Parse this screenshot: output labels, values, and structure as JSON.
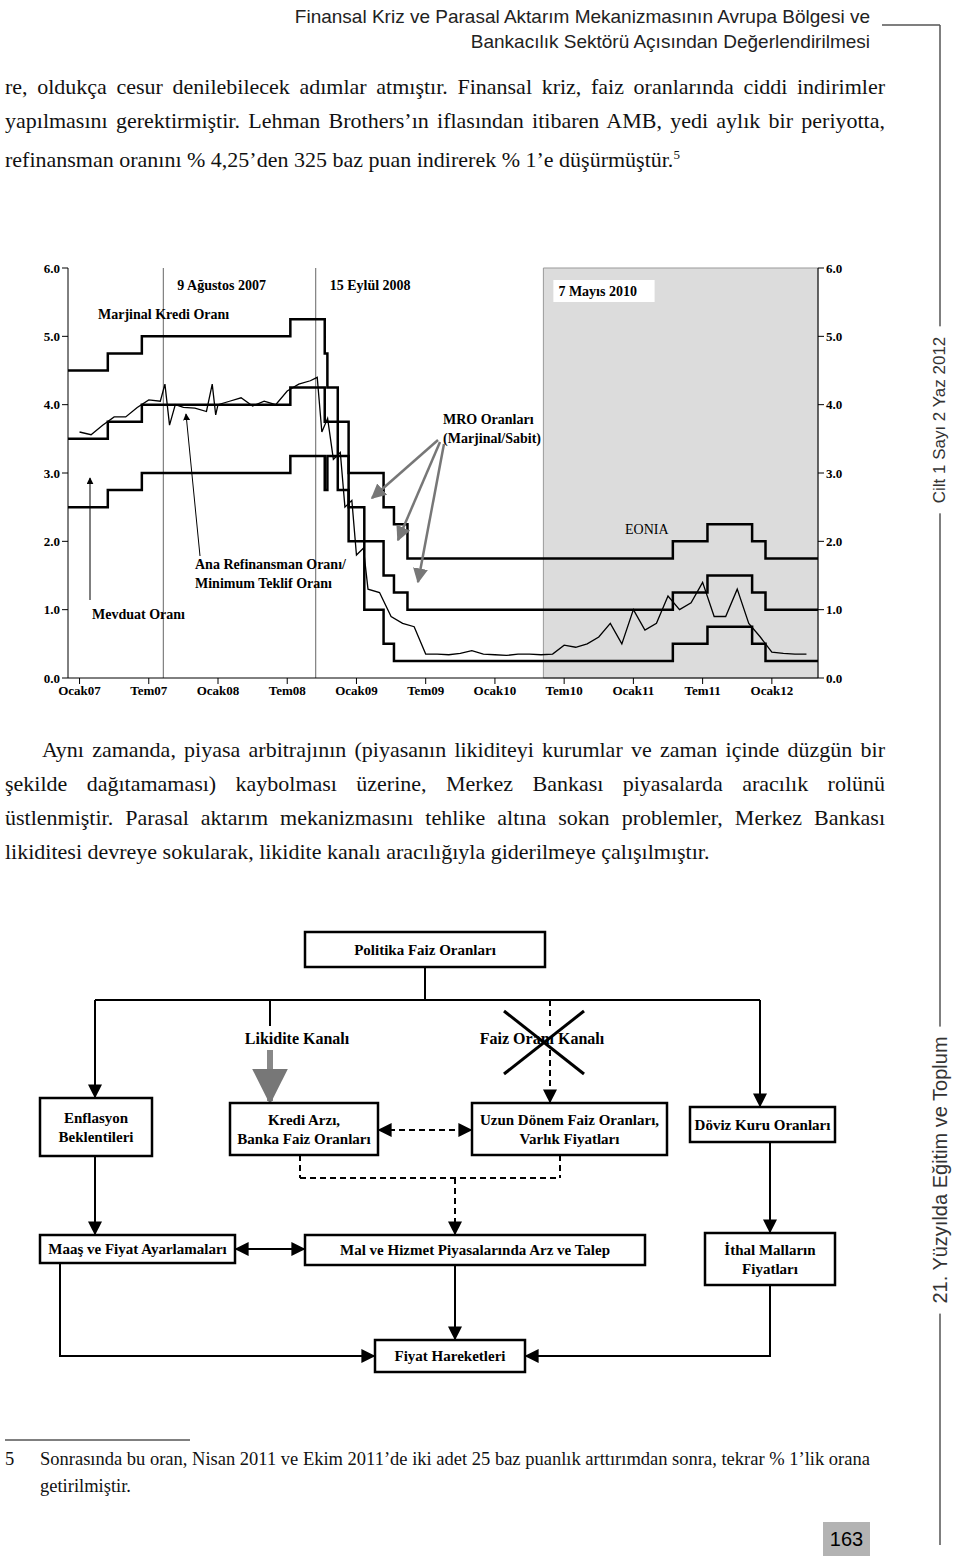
{
  "header": {
    "lines": [
      "Finansal Kriz ve Parasal Aktarım Mekanizmasının Avrupa Bölgesi ve",
      "Bankacılık Sektörü Açısından Değerlendirilmesi"
    ]
  },
  "paragraphs": [
    {
      "text": "re, oldukça cesur denilebilecek adımlar atmıştır. Finansal kriz, faiz oranlarında ciddi indirimler yapılmasını gerektirmiştir. Lehman Brothers’ın iflasından itibaren AMB, yedi aylık bir periyotta, refinansman oranını % 4,25’den 325 baz puan indirerek % 1’e düşürmüştür.",
      "footnote_ref": "5"
    },
    {
      "text": "Aynı zamanda, piyasa arbitrajının (piyasanın likiditeyi kurumlar ve zaman içinde düzgün bir şekilde dağıtamaması) kaybolması üzerine, Merkez Bankası piyasalarda aracılık rolünü üstlenmiştir. Parasal aktarım mekanizmasını tehlike altına sokan problemler, Merkez Bankası likiditesi devreye sokularak, likidite kanalı aracılığıyla giderilmeye çalışılmıştır."
    }
  ],
  "chart_data": {
    "type": "line",
    "xlim": [
      -1,
      64
    ],
    "xticks": [
      {
        "value": 0,
        "label": "Ocak07"
      },
      {
        "value": 6,
        "label": "Tem07"
      },
      {
        "value": 12,
        "label": "Ocak08"
      },
      {
        "value": 18,
        "label": "Tem08"
      },
      {
        "value": 24,
        "label": "Ocak09"
      },
      {
        "value": 30,
        "label": "Tem09"
      },
      {
        "value": 36,
        "label": "Ocak10"
      },
      {
        "value": 42,
        "label": "Tem10"
      },
      {
        "value": 48,
        "label": "Ocak11"
      },
      {
        "value": 54,
        "label": "Tem11"
      },
      {
        "value": 60,
        "label": "Ocak12"
      }
    ],
    "ylim": [
      0,
      6
    ],
    "yticks": [
      {
        "value": 0,
        "label": "0.0"
      },
      {
        "value": 1,
        "label": "1.0"
      },
      {
        "value": 2,
        "label": "2.0"
      },
      {
        "value": 3,
        "label": "3.0"
      },
      {
        "value": 4,
        "label": "4.0"
      },
      {
        "value": 5,
        "label": "5.0"
      },
      {
        "value": 6,
        "label": "6.0"
      }
    ],
    "series": [
      {
        "name": "Marjinal Kredi Oranı",
        "color": "#000000",
        "line_style": "step",
        "x": [
          -1,
          2.45,
          5.4,
          18.27,
          21.25,
          21.48,
          22.38,
          23.32,
          24.68,
          26.35,
          27.25,
          28.42,
          51.42,
          54.42,
          58.29,
          59.45,
          64
        ],
        "values": [
          4.5,
          4.75,
          5.0,
          5.25,
          4.75,
          4.25,
          3.75,
          3.0,
          3.0,
          2.5,
          2.25,
          1.75,
          2.0,
          2.25,
          2.0,
          1.75,
          1.75
        ]
      },
      {
        "name": "Ana Refinansman Oranı/\nMinimum Teklif Oranı",
        "color": "#000000",
        "line_style": "step",
        "x": [
          -1,
          2.45,
          5.4,
          18.27,
          21.25,
          21.48,
          22.38,
          23.32,
          24.68,
          26.35,
          27.25,
          28.42,
          51.42,
          54.42,
          58.29,
          59.45,
          64
        ],
        "values": [
          3.5,
          3.75,
          4.0,
          4.25,
          3.75,
          3.75,
          3.25,
          2.5,
          2.0,
          1.5,
          1.25,
          1.0,
          1.25,
          1.5,
          1.25,
          1.0,
          1.0
        ]
      },
      {
        "name": "Mevduat Oranı",
        "color": "#000000",
        "line_style": "step",
        "x": [
          -1,
          2.45,
          5.4,
          18.27,
          21.25,
          21.48,
          22.38,
          23.32,
          24.68,
          26.35,
          27.25,
          28.42,
          51.42,
          54.42,
          58.29,
          59.45,
          64
        ],
        "values": [
          2.5,
          2.75,
          3.0,
          3.25,
          2.75,
          3.25,
          2.75,
          2.0,
          1.0,
          0.5,
          0.25,
          0.25,
          0.5,
          0.75,
          0.5,
          0.25,
          0.25
        ]
      },
      {
        "name": "EONIA",
        "color": "#000000",
        "line_style": "solid",
        "x": [
          0,
          1,
          2,
          3,
          4,
          5,
          6,
          7,
          7.4,
          7.8,
          8.3,
          9,
          10,
          11,
          11.5,
          11.8,
          12,
          13,
          14,
          15,
          16,
          17,
          18,
          19,
          20,
          20.6,
          21,
          21.5,
          22,
          22.6,
          23,
          23.6,
          24,
          24.6,
          25,
          26,
          27,
          28,
          29,
          30,
          31,
          32,
          33,
          34,
          35,
          36,
          37,
          38,
          39,
          40,
          41,
          42,
          43,
          44,
          45,
          46,
          47,
          48,
          49,
          50,
          51,
          52,
          53,
          54,
          55,
          56,
          57,
          58,
          59,
          60,
          61,
          62,
          63
        ],
        "values": [
          3.6,
          3.56,
          3.7,
          3.82,
          3.82,
          3.96,
          4.07,
          4.05,
          4.3,
          3.7,
          4.0,
          3.96,
          3.95,
          3.9,
          4.3,
          3.85,
          4.0,
          4.05,
          4.1,
          3.98,
          4.05,
          4.0,
          4.2,
          4.3,
          4.35,
          4.4,
          3.6,
          3.8,
          3.2,
          3.3,
          2.5,
          2.6,
          1.8,
          1.9,
          1.3,
          1.25,
          0.9,
          0.8,
          0.75,
          0.35,
          0.35,
          0.34,
          0.36,
          0.4,
          0.35,
          0.34,
          0.33,
          0.35,
          0.35,
          0.34,
          0.35,
          0.48,
          0.45,
          0.5,
          0.6,
          0.8,
          0.5,
          1.0,
          0.7,
          0.8,
          1.2,
          1.0,
          1.1,
          1.4,
          0.9,
          0.9,
          1.3,
          0.8,
          0.6,
          0.38,
          0.36,
          0.35,
          0.35
        ]
      }
    ],
    "annotations": [
      {
        "text": "9 Ağustos 2007",
        "x": 7.26
      },
      {
        "text": "15 Eylül 2008",
        "x": 20.47
      },
      {
        "text": "7 Mayıs 2010",
        "x": 40.2
      },
      {
        "text": "MRO Oranları\n(Marjinal/Sabit)"
      }
    ]
  },
  "diagram": {
    "nodes": [
      {
        "label": "Politika Faiz Oranları"
      },
      {
        "label": "Likidite Kanalı"
      },
      {
        "label": "Faiz Oranı Kanalı",
        "crossed": true
      },
      {
        "label": "Enflasyon\nBeklentileri"
      },
      {
        "label": "Kredi Arzı,\nBanka Faiz Oranları"
      },
      {
        "label": "Uzun Dönem Faiz Oranları,\nVarlık Fiyatları"
      },
      {
        "label": "Döviz Kuru Oranları"
      },
      {
        "label": "Maaş ve Fiyat Ayarlamaları"
      },
      {
        "label": "Mal ve Hizmet Piyasalarında Arz ve Talep"
      },
      {
        "label": "İthal Malların\nFiyatları"
      },
      {
        "label": "Fiyat Hareketleri"
      }
    ]
  },
  "footnote": {
    "number": "5",
    "text": "Sonrasında bu oran, Nisan 2011 ve Ekim 2011’de iki adet 25 baz puanlık arttırımdan sonra, tekrar % 1’lik orana getirilmiştir."
  },
  "sidebar": [
    "Cilt 1 Sayı 2 Yaz 2012",
    "21. Yüzyılda Eğitim ve Toplum"
  ],
  "page_number": "163"
}
